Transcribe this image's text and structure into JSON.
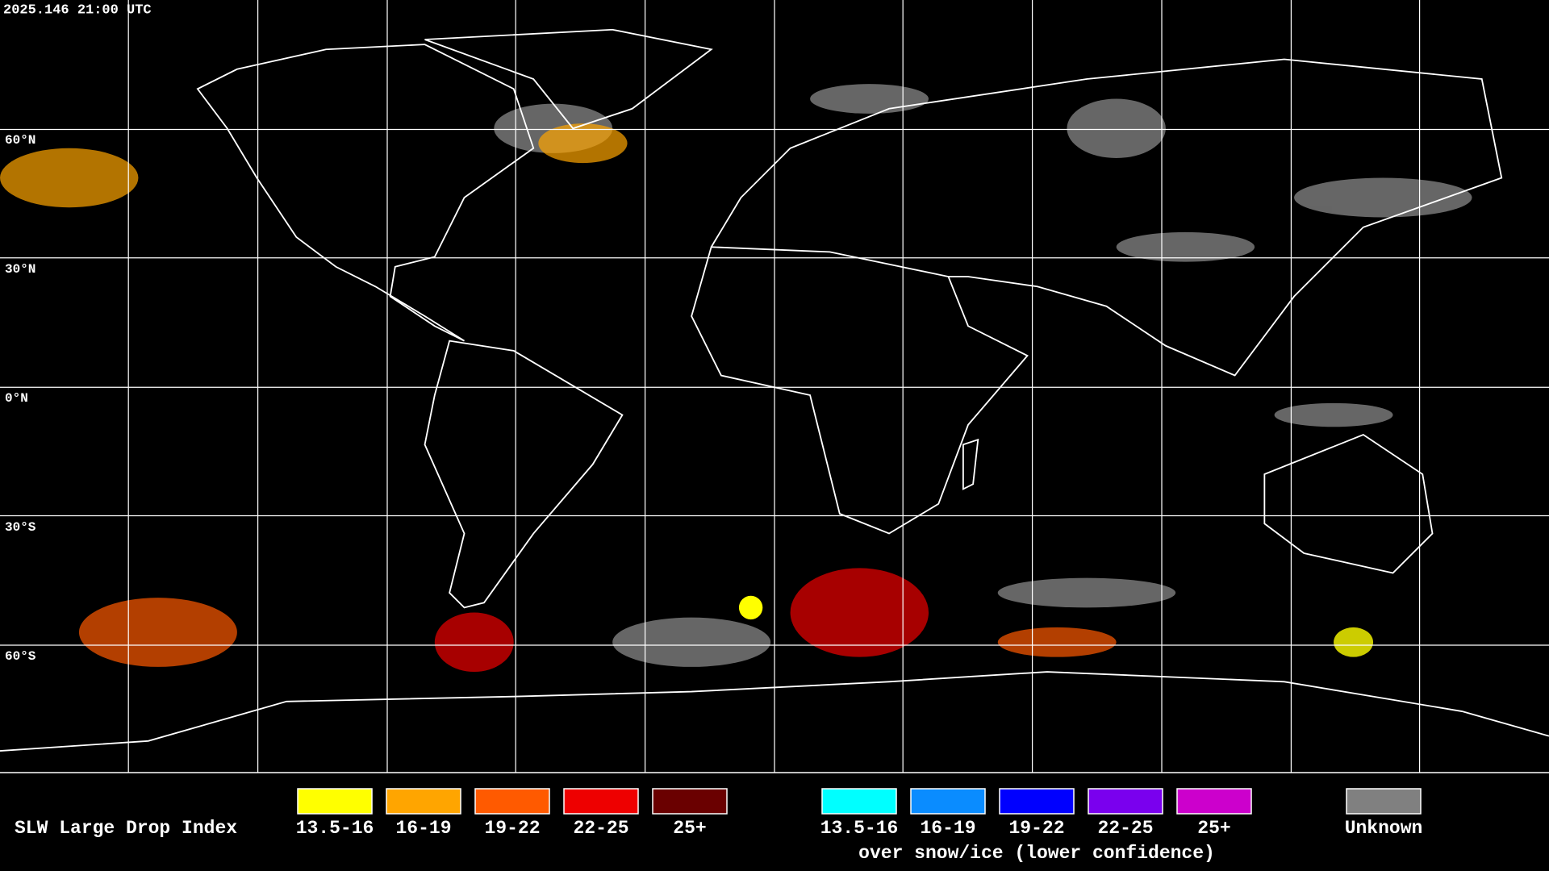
{
  "header": {
    "timestamp": "2025.146 21:00 UTC"
  },
  "map": {
    "lat_labels": [
      "60°N",
      "30°N",
      "0°N",
      "30°S",
      "60°S"
    ]
  },
  "legend": {
    "title": "SLW Large Drop Index",
    "groups": [
      {
        "items": [
          {
            "label": "13.5-16",
            "color": "#ffff00"
          },
          {
            "label": "16-19",
            "color": "#ffa500"
          },
          {
            "label": "19-22",
            "color": "#ff5a00"
          },
          {
            "label": "22-25",
            "color": "#ee0000"
          },
          {
            "label": "25+",
            "color": "#6a0000"
          }
        ]
      },
      {
        "items": [
          {
            "label": "13.5-16",
            "color": "#00ffff"
          },
          {
            "label": "16-19",
            "color": "#0a8cff"
          },
          {
            "label": "19-22",
            "color": "#0000ff"
          },
          {
            "label": "22-25",
            "color": "#7a00ee"
          },
          {
            "label": "25+",
            "color": "#cc00cc"
          }
        ],
        "caption": "over snow/ice (lower confidence)"
      }
    ],
    "unknown": {
      "label": "Unknown",
      "color": "#808080"
    }
  }
}
